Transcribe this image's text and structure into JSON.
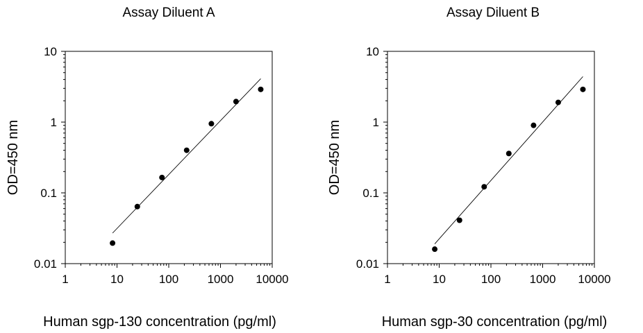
{
  "chart_data": [
    {
      "type": "scatter",
      "title": "Assay Diluent A",
      "xlabel": "Human sgp-130  concentration (pg/ml)",
      "ylabel": "OD=450 nm",
      "x_scale": "log",
      "y_scale": "log",
      "xlim": [
        1,
        10000
      ],
      "ylim": [
        0.01,
        10
      ],
      "x_ticks": [
        "1",
        "10",
        "100",
        "1000",
        "10000"
      ],
      "y_ticks": [
        "0.01",
        "0.1",
        "1",
        "10"
      ],
      "grid": false,
      "legend": "none",
      "series": [
        {
          "x": [
            8.2,
            24.7,
            74,
            222,
            667,
            2000,
            6000
          ],
          "y": [
            0.0195,
            0.064,
            0.165,
            0.4,
            0.95,
            1.95,
            2.9
          ]
        }
      ],
      "fit_line": {
        "x": [
          8.2,
          6000
        ],
        "y": [
          0.027,
          4.1
        ]
      }
    },
    {
      "type": "scatter",
      "title": "Assay Diluent B",
      "xlabel": "Human sgp-30  concentration (pg/ml)",
      "ylabel": "OD=450 nm",
      "x_scale": "log",
      "y_scale": "log",
      "xlim": [
        1,
        10000
      ],
      "ylim": [
        0.01,
        10
      ],
      "x_ticks": [
        "1",
        "10",
        "100",
        "1000",
        "10000"
      ],
      "y_ticks": [
        "0.01",
        "0.1",
        "1",
        "10"
      ],
      "grid": false,
      "legend": "none",
      "series": [
        {
          "x": [
            8.2,
            24.7,
            74,
            222,
            667,
            2000,
            6000
          ],
          "y": [
            0.016,
            0.041,
            0.122,
            0.36,
            0.9,
            1.9,
            2.9
          ]
        }
      ],
      "fit_line": {
        "x": [
          8.2,
          6000
        ],
        "y": [
          0.019,
          4.4
        ]
      }
    }
  ],
  "colors": {
    "marker": "#000000",
    "line": "#000000",
    "background": "#ffffff"
  }
}
